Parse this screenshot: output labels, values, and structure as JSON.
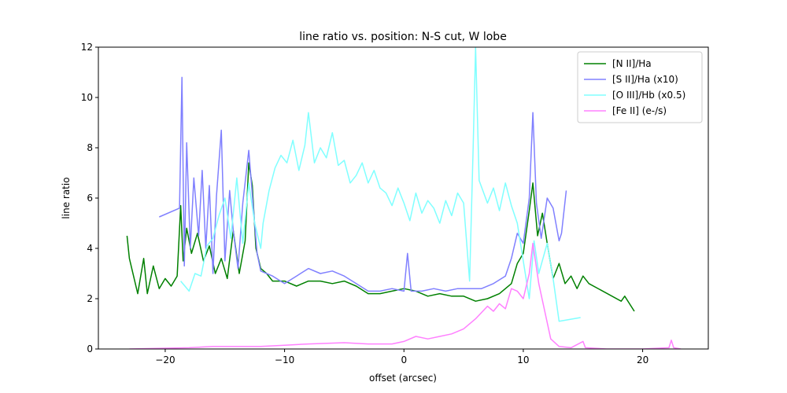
{
  "chart_data": {
    "type": "line",
    "title": "line ratio vs. position: N-S cut, W lobe",
    "x_label": "offset (arcsec)",
    "y_label": "line ratio",
    "xlim": [
      -25.6,
      25.5
    ],
    "ylim": [
      0,
      12
    ],
    "xticks": [
      {
        "value": -20,
        "label": "−20"
      },
      {
        "value": -10,
        "label": "−10"
      },
      0,
      10,
      20
    ],
    "yticks": [
      0,
      2,
      4,
      6,
      8,
      10,
      12
    ],
    "legend": "upper right",
    "series": [
      {
        "name": "[N II]/Ha",
        "color": "#008000",
        "x": [
          -23.2,
          -23,
          -22.3,
          -21.8,
          -21.5,
          -21,
          -20.5,
          -20,
          -19.5,
          -19,
          -18.7,
          -18.5,
          -18.2,
          -17.8,
          -17.3,
          -16.8,
          -16.3,
          -15.8,
          -15.3,
          -14.8,
          -14.3,
          -13.8,
          -13.3,
          -13,
          -12.7,
          -12.4,
          -12,
          -11.5,
          -11,
          -10,
          -9,
          -8,
          -7,
          -6,
          -5,
          -4,
          -3,
          -2,
          -1,
          0,
          1,
          2,
          3,
          4,
          5,
          6,
          7,
          8,
          9,
          9.5,
          10,
          10.5,
          10.8,
          11.2,
          11.6,
          12,
          12.5,
          13,
          13.5,
          14,
          14.5,
          15,
          15.5,
          18.2,
          18.5,
          19.3
        ],
        "values": [
          4.5,
          3.6,
          2.2,
          3.6,
          2.2,
          3.3,
          2.4,
          2.8,
          2.5,
          2.9,
          5.7,
          3.5,
          4.8,
          3.8,
          4.6,
          3.5,
          4.1,
          3.0,
          3.6,
          2.8,
          4.7,
          3.0,
          4.3,
          7.4,
          6.5,
          4.0,
          3.2,
          3.0,
          2.7,
          2.7,
          2.5,
          2.7,
          2.7,
          2.6,
          2.7,
          2.5,
          2.2,
          2.2,
          2.3,
          2.4,
          2.3,
          2.1,
          2.2,
          2.1,
          2.1,
          1.9,
          2.0,
          2.2,
          2.6,
          3.4,
          3.8,
          5.5,
          6.6,
          4.5,
          5.4,
          4.2,
          2.8,
          3.4,
          2.6,
          2.9,
          2.4,
          2.9,
          2.6,
          1.9,
          2.1,
          1.5
        ]
      },
      {
        "name": "[S II]/Ha (x10)",
        "color": "#8080ff",
        "x": [
          -20.5,
          -18.8,
          -18.6,
          -18.4,
          -18.2,
          -17.9,
          -17.6,
          -17.2,
          -16.9,
          -16.6,
          -16.3,
          -16,
          -15.7,
          -15.3,
          -15,
          -14.6,
          -14.3,
          -13.9,
          -13.5,
          -13,
          -12.6,
          -12.3,
          -12,
          -11,
          -10,
          -9,
          -8,
          -7,
          -6,
          -5,
          -4,
          -3,
          -2,
          -1,
          0,
          0.3,
          0.6,
          1.5,
          2.5,
          3.5,
          4.5,
          5.5,
          6.5,
          7.5,
          8.5,
          9,
          9.5,
          10,
          10.5,
          10.8,
          11.1,
          11.5,
          12,
          12.5,
          13,
          13.2,
          13.6
        ],
        "values": [
          5.25,
          5.6,
          10.8,
          3.3,
          8.2,
          4.0,
          6.8,
          4.5,
          7.1,
          4.0,
          6.5,
          3.0,
          6.1,
          8.7,
          3.5,
          6.3,
          4.7,
          3.2,
          5.8,
          7.9,
          5.5,
          3.8,
          3.1,
          2.9,
          2.6,
          2.9,
          3.2,
          3.0,
          3.1,
          2.9,
          2.6,
          2.3,
          2.3,
          2.4,
          2.3,
          3.8,
          2.3,
          2.3,
          2.4,
          2.3,
          2.4,
          2.4,
          2.4,
          2.6,
          2.9,
          3.6,
          4.6,
          4.2,
          6.0,
          9.4,
          5.8,
          4.4,
          6.0,
          5.6,
          4.3,
          4.6,
          6.3
        ]
      },
      {
        "name": "[O III]/Hb (x0.5)",
        "color": "#80ffff",
        "x": [
          -18.7,
          -18,
          -17.5,
          -17,
          -16.5,
          -16,
          -15.5,
          -15,
          -14.5,
          -14,
          -13.5,
          -13,
          -12.5,
          -12,
          -11.8,
          -11.3,
          -10.8,
          -10.3,
          -9.8,
          -9.3,
          -8.8,
          -8.3,
          -8,
          -7.5,
          -7,
          -6.5,
          -6,
          -5.5,
          -5,
          -4.5,
          -4,
          -3.5,
          -3,
          -2.5,
          -2,
          -1.5,
          -1,
          -0.5,
          0,
          0.5,
          1,
          1.5,
          2,
          2.5,
          3,
          3.5,
          4,
          4.5,
          5,
          5.5,
          5.8,
          6,
          6.3,
          7,
          7.5,
          8,
          8.5,
          9,
          9.5,
          10,
          10.5,
          10.9,
          11.3,
          12,
          12.5,
          13,
          14.8
        ],
        "values": [
          2.7,
          2.3,
          3.0,
          2.9,
          4.1,
          4.4,
          5.3,
          6.0,
          4.4,
          6.8,
          4.2,
          6.6,
          5.0,
          4.0,
          5.0,
          6.3,
          7.2,
          7.7,
          7.4,
          8.3,
          7.1,
          8.1,
          9.4,
          7.4,
          8.0,
          7.6,
          8.6,
          7.3,
          7.5,
          6.6,
          6.9,
          7.4,
          6.6,
          7.1,
          6.4,
          6.2,
          5.7,
          6.4,
          5.8,
          5.1,
          6.2,
          5.4,
          5.9,
          5.6,
          5.0,
          5.9,
          5.3,
          6.2,
          5.8,
          2.7,
          8.0,
          12.0,
          6.7,
          5.8,
          6.4,
          5.5,
          6.6,
          5.7,
          5.0,
          3.5,
          2.0,
          4.3,
          3.0,
          4.2,
          2.8,
          1.1,
          1.25
        ]
      },
      {
        "name": "[Fe II] (e-/s)",
        "color": "#ff80ff",
        "x": [
          -23,
          -18,
          -16,
          -14,
          -12,
          -10,
          -8,
          -5,
          -3,
          -1,
          0,
          1,
          2,
          3,
          4,
          5,
          6,
          7,
          7.5,
          8,
          8.5,
          9,
          9.5,
          10,
          10.5,
          10.8,
          11.3,
          11.8,
          12.3,
          13,
          14,
          15,
          15.2,
          17,
          20,
          22.2,
          22.4,
          22.6,
          23.2
        ],
        "values": [
          0,
          0.05,
          0.1,
          0.1,
          0.1,
          0.15,
          0.2,
          0.25,
          0.2,
          0.2,
          0.3,
          0.5,
          0.4,
          0.5,
          0.6,
          0.8,
          1.2,
          1.7,
          1.5,
          1.8,
          1.6,
          2.4,
          2.3,
          2.0,
          3.0,
          4.2,
          2.6,
          1.5,
          0.4,
          0.1,
          0.05,
          0.3,
          0.05,
          0,
          0,
          0.05,
          0.35,
          0.05,
          0
        ]
      }
    ]
  }
}
